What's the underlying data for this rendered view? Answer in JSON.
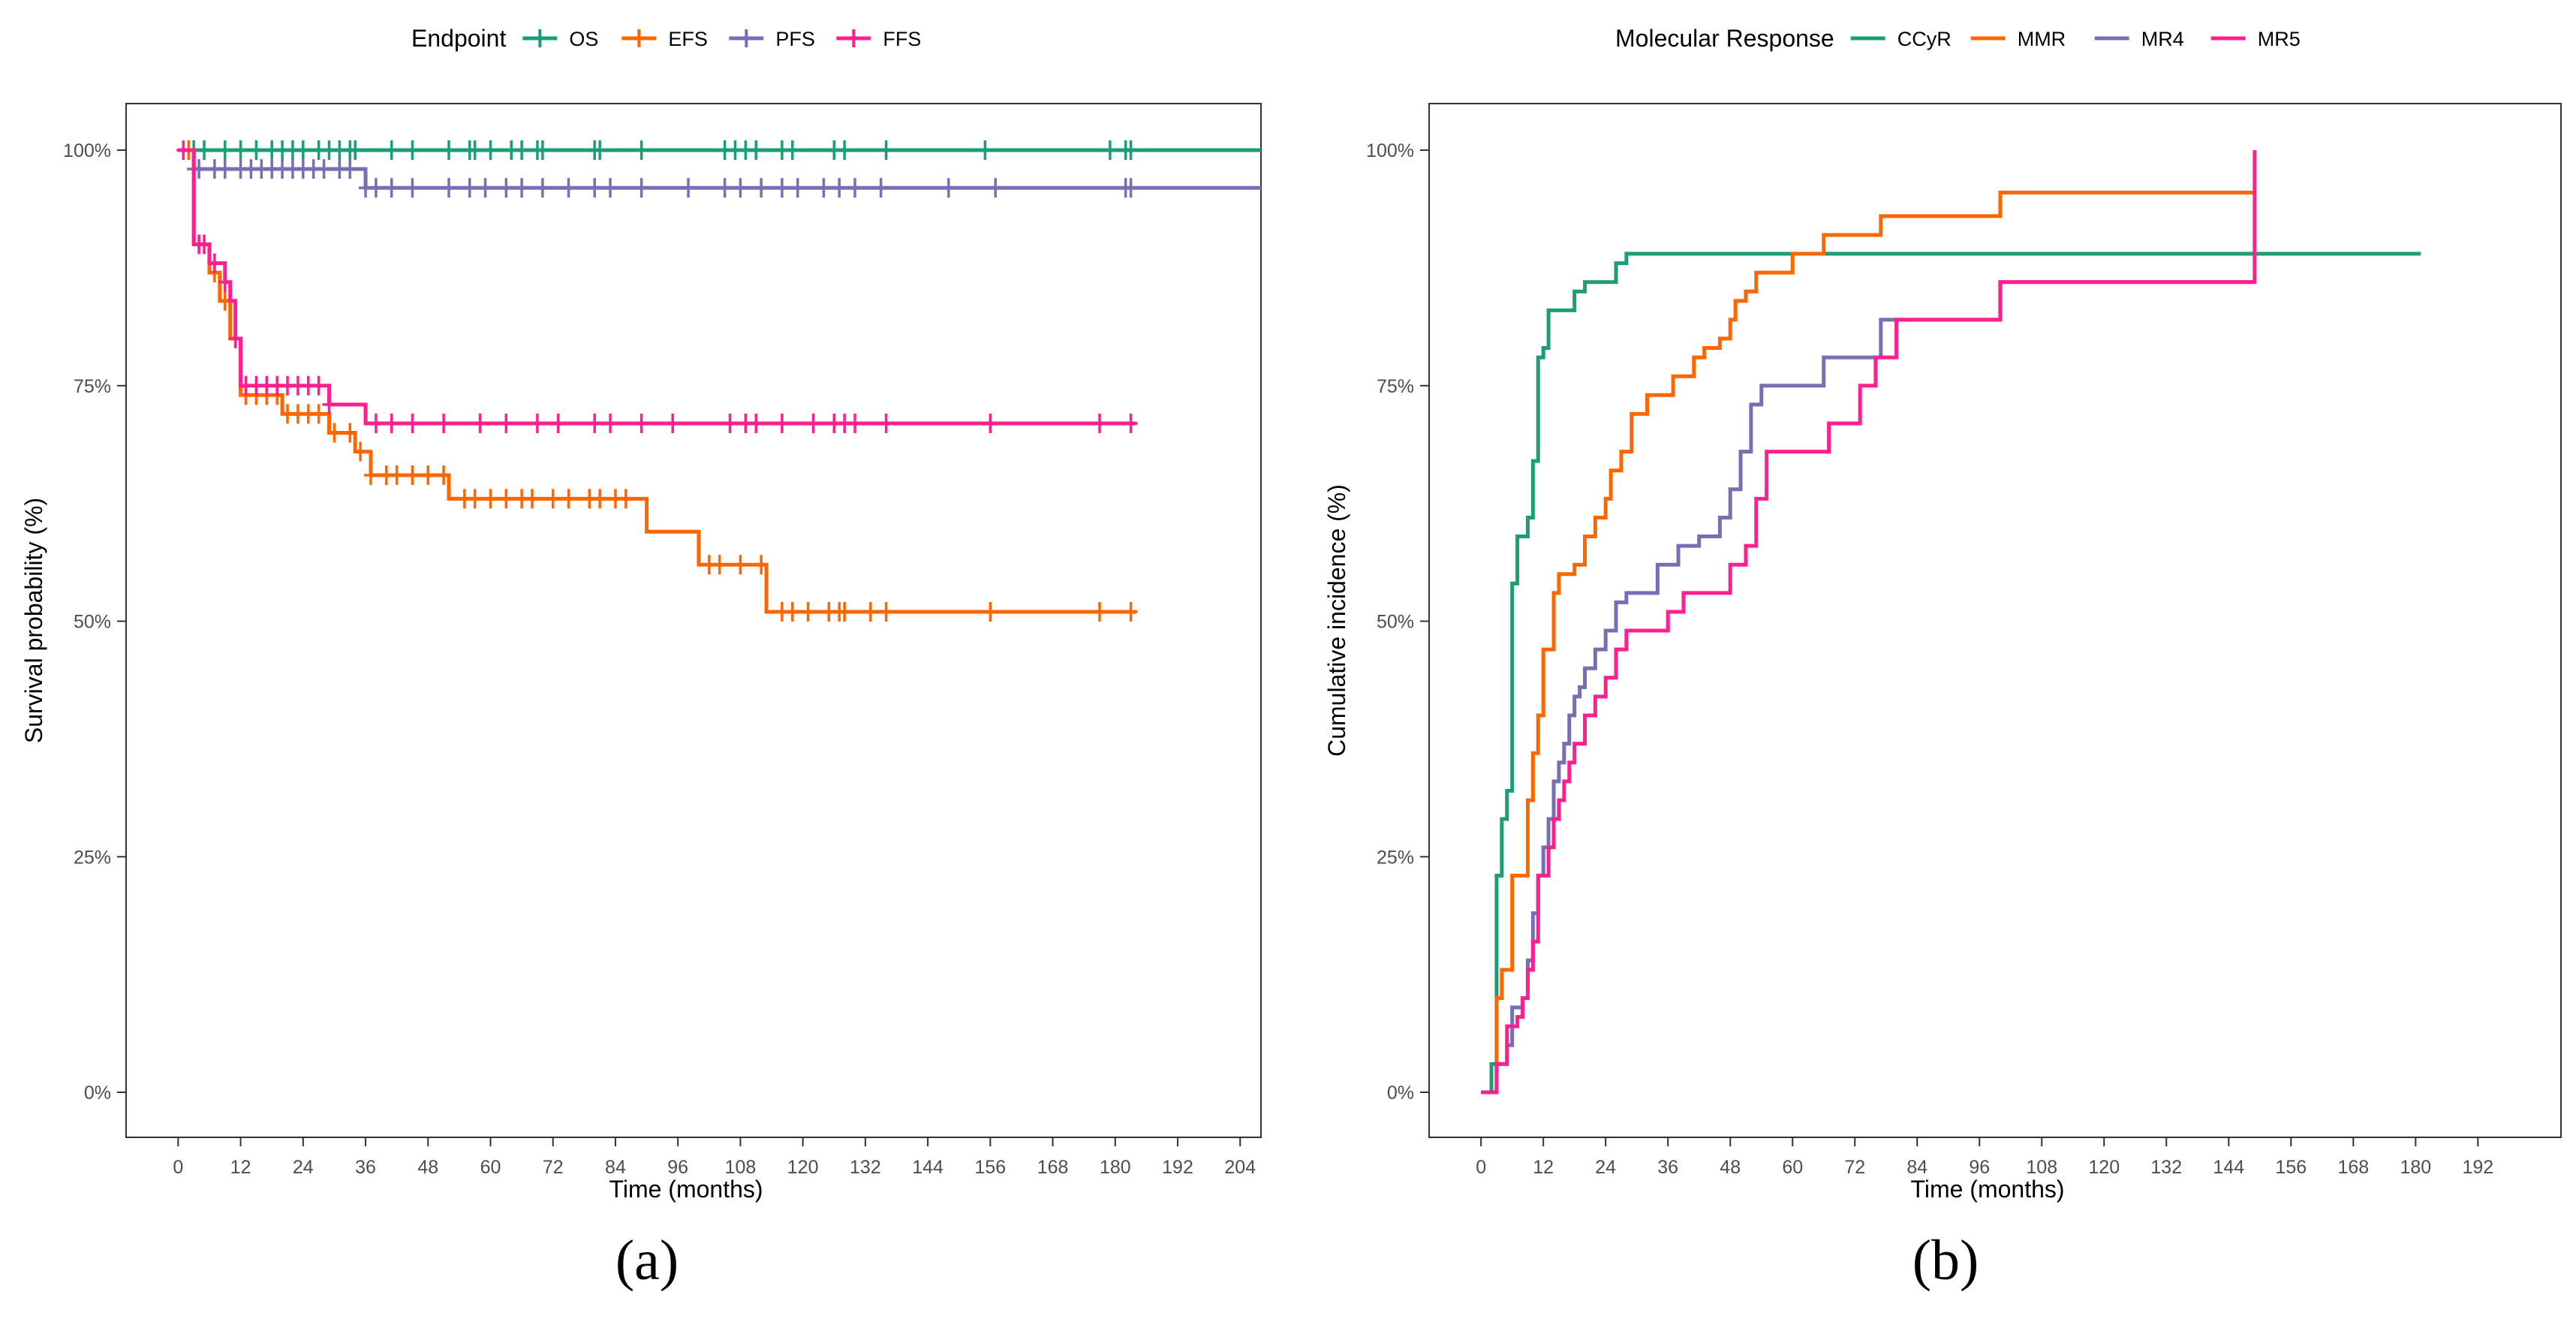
{
  "chart_data": [
    {
      "type": "line",
      "subtype": "kaplan-meier",
      "panel_label": "(a)",
      "legend_title": "Endpoint",
      "xlabel": "Time (months)",
      "ylabel": "Survival probability (%)",
      "xlim": [
        -10,
        208
      ],
      "ylim": [
        0,
        100
      ],
      "x_ticks": [
        0,
        12,
        24,
        36,
        48,
        60,
        72,
        84,
        96,
        108,
        120,
        132,
        144,
        156,
        168,
        180,
        192,
        204
      ],
      "y_ticks": [
        0,
        25,
        50,
        75,
        100
      ],
      "y_tick_labels": [
        "0%",
        "25%",
        "50%",
        "75%",
        "100%"
      ],
      "grid": false,
      "legend_position": "top",
      "series": [
        {
          "name": "OS",
          "color": "#1b9e77",
          "steps": [
            [
              0,
              100
            ],
            [
              208,
              100
            ]
          ],
          "censor": [
            3,
            5,
            9,
            12,
            15,
            18,
            20,
            22,
            24,
            27,
            29,
            31,
            33,
            34,
            41,
            45,
            52,
            56,
            57,
            60,
            64,
            66,
            69,
            70,
            80,
            81,
            89,
            105,
            107,
            109,
            111,
            116,
            118,
            126,
            128,
            136,
            155,
            179,
            182,
            183
          ]
        },
        {
          "name": "EFS",
          "color": "#ff6600",
          "steps": [
            [
              0,
              100
            ],
            [
              3,
              90
            ],
            [
              6,
              87
            ],
            [
              8,
              84
            ],
            [
              10,
              80
            ],
            [
              12,
              74
            ],
            [
              20,
              72
            ],
            [
              29,
              70
            ],
            [
              34,
              68
            ],
            [
              37,
              65.5
            ],
            [
              52,
              63
            ],
            [
              90,
              59.5
            ],
            [
              100,
              56
            ],
            [
              113,
              51
            ],
            [
              184,
              51
            ]
          ],
          "censor": [
            2,
            4,
            5,
            7,
            9,
            11,
            13,
            15,
            17,
            19,
            21,
            23,
            25,
            27,
            30,
            33,
            35,
            37,
            40,
            42,
            45,
            48,
            51,
            55,
            57,
            60,
            63,
            66,
            68,
            72,
            75,
            79,
            81,
            84,
            86,
            102,
            104,
            108,
            112,
            116,
            118,
            121,
            125,
            127,
            128,
            133,
            136,
            156,
            177,
            183
          ]
        },
        {
          "name": "PFS",
          "color": "#7570b3",
          "steps": [
            [
              0,
              100
            ],
            [
              3,
              98
            ],
            [
              36,
              96
            ],
            [
              208,
              96
            ]
          ],
          "censor": [
            3,
            4,
            7,
            9,
            12,
            14,
            16,
            18,
            20,
            22,
            24,
            26,
            28,
            31,
            33,
            36,
            38,
            41,
            45,
            52,
            56,
            59,
            63,
            66,
            70,
            75,
            80,
            83,
            89,
            98,
            105,
            108,
            112,
            116,
            119,
            124,
            127,
            130,
            135,
            148,
            157,
            182,
            183
          ]
        },
        {
          "name": "FFS",
          "color": "#ff1f8e",
          "steps": [
            [
              0,
              100
            ],
            [
              3,
              90
            ],
            [
              6,
              88
            ],
            [
              9,
              86
            ],
            [
              10,
              84
            ],
            [
              11,
              80
            ],
            [
              12,
              75
            ],
            [
              29,
              73
            ],
            [
              36,
              71
            ],
            [
              184,
              71
            ]
          ],
          "censor": [
            1,
            4,
            5,
            7,
            9,
            11,
            13,
            15,
            17,
            19,
            21,
            23,
            25,
            27,
            29,
            38,
            41,
            45,
            51,
            58,
            63,
            69,
            73,
            80,
            83,
            89,
            95,
            106,
            109,
            111,
            116,
            122,
            126,
            128,
            130,
            136,
            156,
            177,
            183
          ]
        }
      ]
    },
    {
      "type": "line",
      "subtype": "cumulative-incidence",
      "panel_label": "(b)",
      "legend_title": "Molecular Response",
      "xlabel": "Time (months)",
      "ylabel": "Cumulative incidence (%)",
      "xlim": [
        -10,
        208
      ],
      "ylim": [
        0,
        100
      ],
      "x_ticks": [
        0,
        12,
        24,
        36,
        48,
        60,
        72,
        84,
        96,
        108,
        120,
        132,
        144,
        156,
        168,
        180,
        192
      ],
      "y_ticks": [
        0,
        25,
        50,
        75,
        100
      ],
      "y_tick_labels": [
        "0%",
        "25%",
        "50%",
        "75%",
        "100%"
      ],
      "grid": false,
      "legend_position": "top",
      "series": [
        {
          "name": "CCyR",
          "color": "#1b9e77",
          "steps": [
            [
              0,
              0
            ],
            [
              2,
              3
            ],
            [
              3,
              23
            ],
            [
              4,
              29
            ],
            [
              5,
              32
            ],
            [
              6,
              54
            ],
            [
              7,
              59
            ],
            [
              9,
              61
            ],
            [
              10,
              67
            ],
            [
              11,
              78
            ],
            [
              12,
              79
            ],
            [
              13,
              83
            ],
            [
              18,
              85
            ],
            [
              20,
              86
            ],
            [
              26,
              88
            ],
            [
              28,
              89
            ],
            [
              181,
              89
            ]
          ]
        },
        {
          "name": "MMR",
          "color": "#ff6600",
          "steps": [
            [
              0,
              0
            ],
            [
              3,
              10
            ],
            [
              4,
              13
            ],
            [
              6,
              23
            ],
            [
              9,
              31
            ],
            [
              10,
              36
            ],
            [
              11,
              40
            ],
            [
              12,
              47
            ],
            [
              14,
              53
            ],
            [
              15,
              55
            ],
            [
              18,
              56
            ],
            [
              20,
              59
            ],
            [
              22,
              61
            ],
            [
              24,
              63
            ],
            [
              25,
              66
            ],
            [
              27,
              68
            ],
            [
              29,
              72
            ],
            [
              32,
              74
            ],
            [
              37,
              76
            ],
            [
              41,
              78
            ],
            [
              43,
              79
            ],
            [
              46,
              80
            ],
            [
              48,
              82
            ],
            [
              49,
              84
            ],
            [
              51,
              85
            ],
            [
              53,
              87
            ],
            [
              60,
              89
            ],
            [
              66,
              91
            ],
            [
              77,
              93
            ],
            [
              100,
              95.5
            ],
            [
              149,
              95.5
            ]
          ]
        },
        {
          "name": "MR4",
          "color": "#7570b3",
          "steps": [
            [
              0,
              0
            ],
            [
              3,
              3
            ],
            [
              5,
              5
            ],
            [
              6,
              9
            ],
            [
              8,
              10
            ],
            [
              9,
              14
            ],
            [
              10,
              19
            ],
            [
              11,
              23
            ],
            [
              12,
              26
            ],
            [
              13,
              29
            ],
            [
              14,
              33
            ],
            [
              15,
              35
            ],
            [
              16,
              37
            ],
            [
              17,
              40
            ],
            [
              18,
              42
            ],
            [
              19,
              43
            ],
            [
              20,
              45
            ],
            [
              22,
              47
            ],
            [
              24,
              49
            ],
            [
              26,
              52
            ],
            [
              28,
              53
            ],
            [
              34,
              56
            ],
            [
              38,
              58
            ],
            [
              42,
              59
            ],
            [
              46,
              61
            ],
            [
              48,
              64
            ],
            [
              50,
              68
            ],
            [
              52,
              73
            ],
            [
              54,
              75
            ],
            [
              66,
              78
            ],
            [
              77,
              82
            ],
            [
              81,
              82
            ],
            [
              100,
              86
            ],
            [
              149,
              86
            ]
          ]
        },
        {
          "name": "MR5",
          "color": "#ff1f8e",
          "steps": [
            [
              0,
              0
            ],
            [
              3,
              3
            ],
            [
              5,
              7
            ],
            [
              7,
              8
            ],
            [
              8,
              10
            ],
            [
              9,
              13
            ],
            [
              10,
              16
            ],
            [
              11,
              23
            ],
            [
              13,
              26
            ],
            [
              14,
              29
            ],
            [
              15,
              31
            ],
            [
              16,
              33
            ],
            [
              17,
              35
            ],
            [
              18,
              37
            ],
            [
              20,
              40
            ],
            [
              22,
              42
            ],
            [
              24,
              44
            ],
            [
              26,
              47
            ],
            [
              28,
              49
            ],
            [
              36,
              51
            ],
            [
              39,
              53
            ],
            [
              48,
              56
            ],
            [
              51,
              58
            ],
            [
              53,
              63
            ],
            [
              55,
              68
            ],
            [
              67,
              71
            ],
            [
              73,
              75
            ],
            [
              76,
              78
            ],
            [
              80,
              82
            ],
            [
              100,
              86
            ],
            [
              149,
              86
            ],
            [
              149,
              100
            ]
          ]
        }
      ]
    }
  ]
}
